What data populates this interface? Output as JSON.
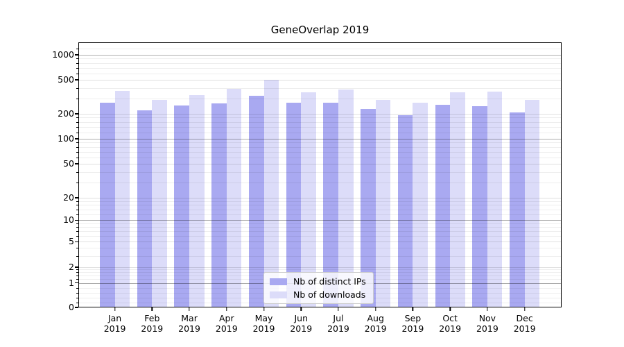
{
  "chart_data": {
    "type": "bar",
    "title": "GeneOverlap 2019",
    "categories": [
      "Jan 2019",
      "Feb 2019",
      "Mar 2019",
      "Apr 2019",
      "May 2019",
      "Jun 2019",
      "Jul 2019",
      "Aug 2019",
      "Sep 2019",
      "Oct 2019",
      "Nov 2019",
      "Dec 2019"
    ],
    "series": [
      {
        "name": "Nb of distinct IPs",
        "color": "#a9a9f1",
        "values": [
          268,
          220,
          252,
          265,
          327,
          268,
          271,
          229,
          192,
          255,
          244,
          206
        ]
      },
      {
        "name": "Nb of downloads",
        "color": "#dcdcf9",
        "values": [
          373,
          291,
          331,
          392,
          497,
          357,
          383,
          289,
          271,
          355,
          364,
          291
        ]
      }
    ],
    "xlabel": "",
    "ylabel": "",
    "y_scale": "symlog",
    "y_ticks": [
      0,
      1,
      2,
      5,
      10,
      20,
      50,
      100,
      200,
      500,
      1000
    ],
    "y_major_ticks": [
      1,
      10,
      100,
      1000
    ],
    "ylim": [
      0,
      1400
    ],
    "grid": "both",
    "legend_position": "lower center"
  }
}
